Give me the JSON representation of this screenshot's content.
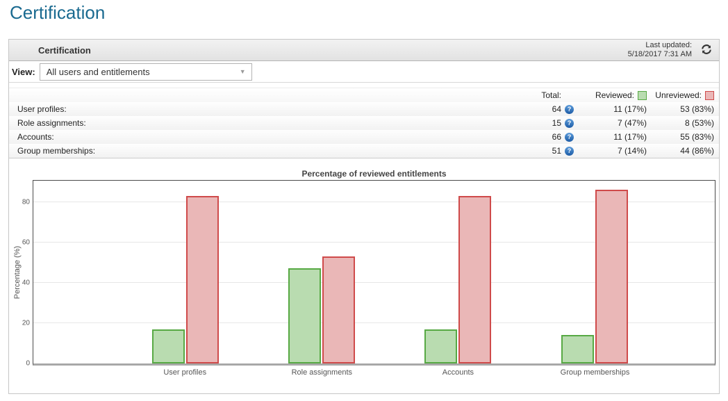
{
  "page": {
    "title": "Certification"
  },
  "panel": {
    "title": "Certification",
    "last_updated_label": "Last updated:",
    "last_updated_value": "5/18/2017 7:31 AM"
  },
  "view": {
    "label": "View:",
    "selected": "All users and entitlements"
  },
  "stats": {
    "columns": {
      "total": "Total:",
      "reviewed": "Reviewed:",
      "unreviewed": "Unreviewed:"
    },
    "help_icon_glyph": "?",
    "rows": [
      {
        "label": "User profiles:",
        "total": "64",
        "reviewed": "11 (17%)",
        "unreviewed": "53 (83%)"
      },
      {
        "label": "Role assignments:",
        "total": "15",
        "reviewed": "7 (47%)",
        "unreviewed": "8 (53%)"
      },
      {
        "label": "Accounts:",
        "total": "66",
        "reviewed": "11 (17%)",
        "unreviewed": "55 (83%)"
      },
      {
        "label": "Group memberships:",
        "total": "51",
        "reviewed": "7 (14%)",
        "unreviewed": "44 (86%)"
      }
    ]
  },
  "colors": {
    "page_title": "#1a6a90",
    "reviewed_fill": "#b9dcb0",
    "reviewed_border": "#57a944",
    "unreviewed_fill": "#eab7b7",
    "unreviewed_border": "#cf4a4a"
  },
  "chart_data": {
    "type": "bar",
    "title": "Percentage of reviewed entitlements",
    "xlabel": "",
    "ylabel": "Percentage (%)",
    "categories": [
      "User profiles",
      "Role assignments",
      "Accounts",
      "Group memberships"
    ],
    "series": [
      {
        "name": "Reviewed",
        "values": [
          17,
          47,
          17,
          14
        ]
      },
      {
        "name": "Unreviewed",
        "values": [
          83,
          53,
          83,
          86
        ]
      }
    ],
    "ylim": [
      0,
      90.5
    ],
    "yticks": [
      0,
      20,
      40,
      60,
      80
    ],
    "grid": true,
    "legend_position": "table-header"
  }
}
